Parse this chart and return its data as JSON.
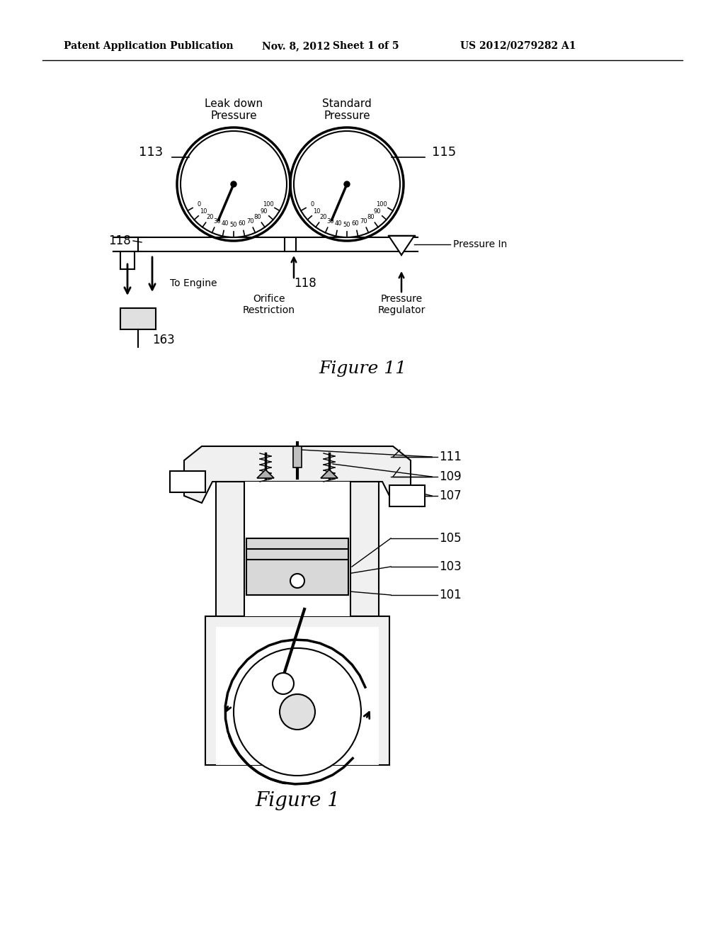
{
  "bg_color": "#ffffff",
  "line_color": "#000000",
  "header_text": "Patent Application Publication",
  "header_date": "Nov. 8, 2012",
  "header_sheet": "Sheet 1 of 5",
  "header_patent": "US 2012/0279282 A1",
  "fig11_title": "Figure 11",
  "fig1_title": "Figure 1",
  "gauge1_label": "Leak down\nPressure",
  "gauge2_label": "Standard\nPressure",
  "gauge1_num": "113",
  "gauge2_num": "115",
  "pipe_num": "118",
  "pipe_num2": "118",
  "connector_num": "163",
  "to_engine_label": "To Engine",
  "orifice_label": "Orifice\nRestriction",
  "pressure_reg_label": "Pressure\nRegulator",
  "pressure_in_label": "Pressure In",
  "labels_fig1": [
    "111",
    "109",
    "107",
    "105",
    "103",
    "101"
  ]
}
